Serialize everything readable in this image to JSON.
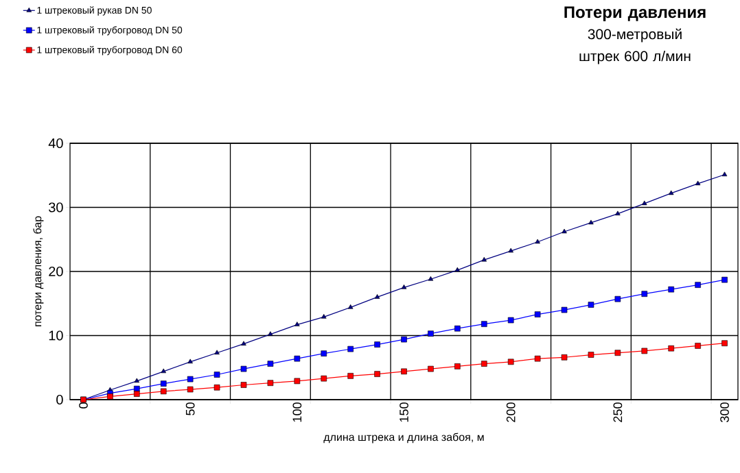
{
  "chart_data": {
    "type": "line",
    "title": "Потери давления",
    "subtitle": "300-метровый штрек 600 л/мин",
    "xlabel": "длина штрека и длина забоя, м",
    "ylabel": "потери давления, бар",
    "x": [
      0,
      12.5,
      25,
      37.5,
      50,
      62.5,
      75,
      87.5,
      100,
      112.5,
      125,
      137.5,
      150,
      162.5,
      175,
      187.5,
      200,
      212.5,
      225,
      237.5,
      250,
      262.5,
      275,
      287.5,
      300
    ],
    "series": [
      {
        "name": "1 штрековый рукав DN 50",
        "color": "#000080",
        "marker": "triangle",
        "values": [
          0,
          1.5,
          2.9,
          4.4,
          5.9,
          7.3,
          8.7,
          10.2,
          11.7,
          12.9,
          14.4,
          16.0,
          17.5,
          18.8,
          20.2,
          21.8,
          23.2,
          24.6,
          26.2,
          27.6,
          29.0,
          30.6,
          32.2,
          33.7,
          35.1
        ]
      },
      {
        "name": "1 штрековый трубогровод DN 50",
        "color": "#0000ff",
        "marker": "square",
        "values": [
          0,
          1.0,
          1.7,
          2.5,
          3.2,
          3.9,
          4.8,
          5.6,
          6.4,
          7.2,
          7.9,
          8.6,
          9.4,
          10.3,
          11.1,
          11.8,
          12.4,
          13.3,
          14.0,
          14.8,
          15.7,
          16.5,
          17.2,
          17.9,
          18.7
        ]
      },
      {
        "name": "1 штрековый трубогровод DN 60",
        "color": "#ff0000",
        "marker": "square",
        "values": [
          0,
          0.5,
          0.9,
          1.3,
          1.6,
          1.9,
          2.3,
          2.6,
          2.9,
          3.3,
          3.7,
          4.0,
          4.4,
          4.8,
          5.2,
          5.6,
          5.9,
          6.4,
          6.6,
          7.0,
          7.3,
          7.6,
          8.0,
          8.4,
          8.8
        ]
      }
    ],
    "xlim": [
      -6.25,
      306.25
    ],
    "xticks": [
      0,
      50,
      100,
      150,
      200,
      250,
      300,
      {
        "value": 31.25,
        "label": null
      },
      {
        "value": 68.75,
        "label": null
      },
      {
        "value": 106.25,
        "label": null
      },
      {
        "value": 143.75,
        "label": null
      },
      {
        "value": 181.25,
        "label": null
      },
      {
        "value": 218.75,
        "label": null
      },
      {
        "value": 256.25,
        "label": null
      },
      {
        "value": 293.75,
        "label": null
      }
    ],
    "ylim": [
      0,
      40
    ],
    "yticks": [
      0,
      10,
      20,
      30,
      40
    ],
    "grid": true,
    "legend": "top left",
    "line_style": "solid"
  }
}
